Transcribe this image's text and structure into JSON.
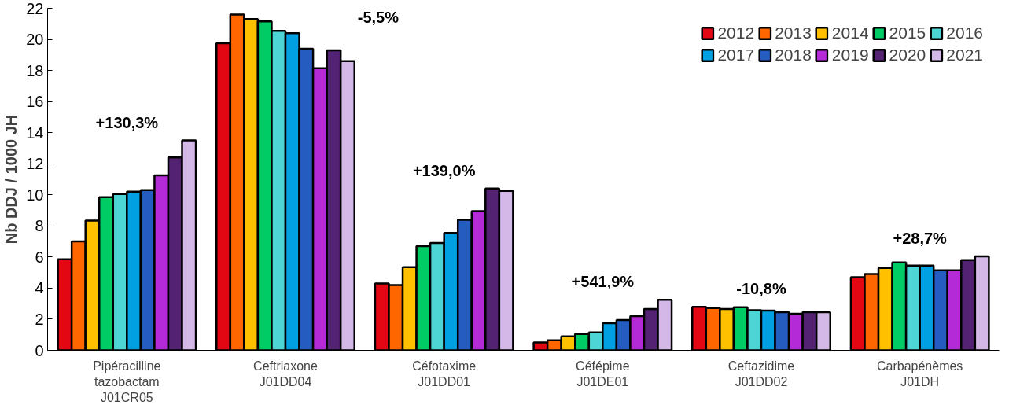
{
  "chart_data": {
    "type": "bar",
    "ylabel": "Nb DDJ / 1000 JH",
    "categories": [
      "Pipéracilline\ntazobactam\nJ01CR05",
      "Ceftriaxone\nJ01DD04",
      "Céfotaxime\nJ01DD01",
      "Céfépime\nJ01DE01",
      "Ceftazidime\nJ01DD02",
      "Carbapénèmes\nJ01DH"
    ],
    "series": [
      {
        "name": "2012",
        "color": "#e30613",
        "values": [
          5.85,
          19.75,
          4.3,
          0.5,
          2.8,
          4.7
        ]
      },
      {
        "name": "2013",
        "color": "#ff6600",
        "values": [
          7.0,
          21.6,
          4.2,
          0.65,
          2.72,
          4.9
        ]
      },
      {
        "name": "2014",
        "color": "#ffc000",
        "values": [
          8.35,
          21.3,
          5.35,
          0.9,
          2.65,
          5.3
        ]
      },
      {
        "name": "2015",
        "color": "#00cc66",
        "values": [
          9.85,
          21.15,
          6.7,
          1.05,
          2.77,
          5.65
        ]
      },
      {
        "name": "2016",
        "color": "#4dd5d5",
        "values": [
          10.05,
          20.55,
          6.9,
          1.15,
          2.58,
          5.45
        ]
      },
      {
        "name": "2017",
        "color": "#00a0e3",
        "values": [
          10.2,
          20.4,
          7.55,
          1.75,
          2.55,
          5.45
        ]
      },
      {
        "name": "2018",
        "color": "#255cbf",
        "values": [
          10.3,
          19.4,
          8.4,
          1.95,
          2.45,
          5.15
        ]
      },
      {
        "name": "2019",
        "color": "#b32ad6",
        "values": [
          11.25,
          18.15,
          8.95,
          2.2,
          2.35,
          5.15
        ]
      },
      {
        "name": "2020",
        "color": "#532273",
        "values": [
          12.4,
          19.3,
          10.4,
          2.65,
          2.45,
          5.8
        ]
      },
      {
        "name": "2021",
        "color": "#d4b8e8",
        "values": [
          13.5,
          18.6,
          10.25,
          3.25,
          2.45,
          6.05
        ]
      }
    ],
    "ylim": [
      0,
      22
    ],
    "yticks": [
      0,
      2,
      4,
      6,
      8,
      10,
      12,
      14,
      16,
      18,
      20,
      22
    ],
    "grid": false,
    "legend": "top right",
    "annotations": [
      "+130,3%",
      "-5,5%",
      "+139,0%",
      "+541,9%",
      "-10,8%",
      "+28,7%"
    ]
  }
}
